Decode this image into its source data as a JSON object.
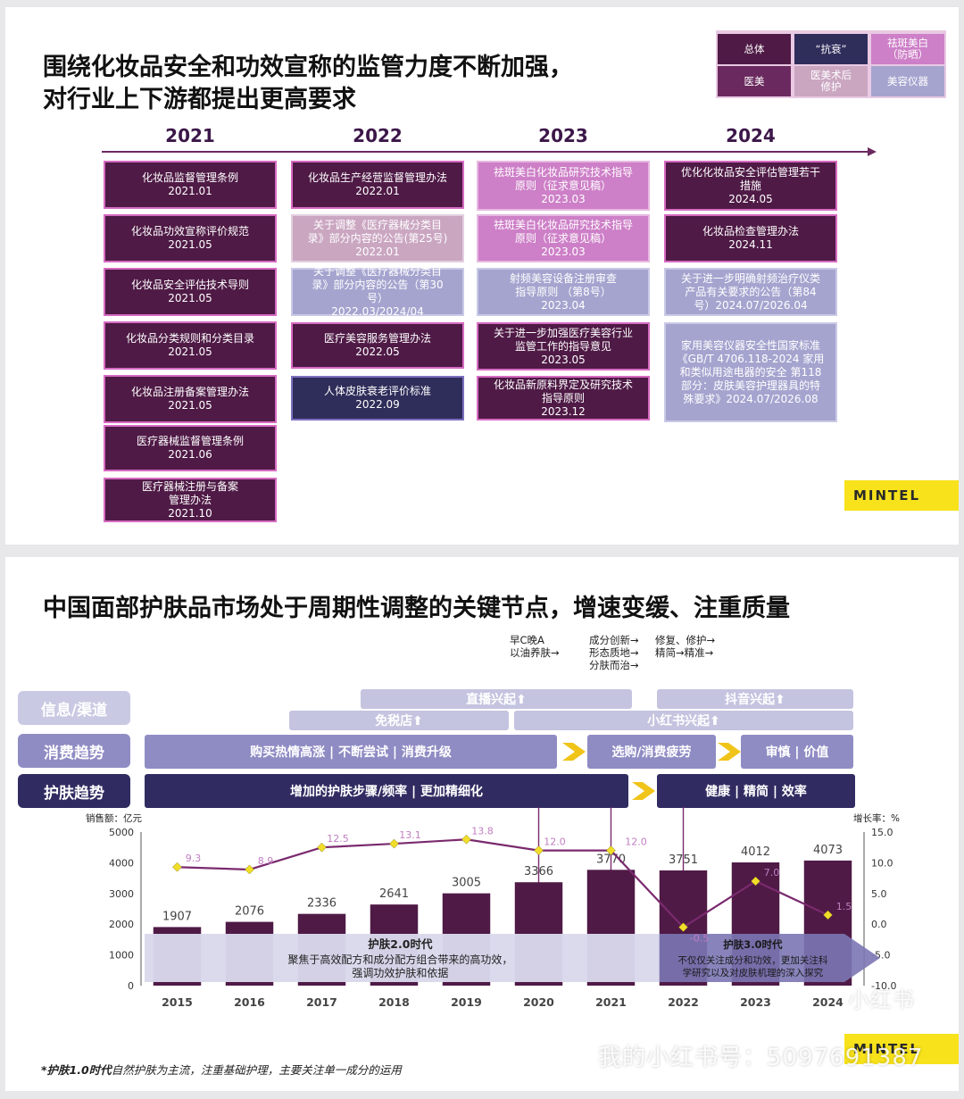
{
  "slide1": {
    "title_line1": "围绕化妆品安全和功效宣称的监管力度不断加强，",
    "title_line2": "对行业上下游都提出更高要求",
    "legend": [
      {
        "label": "总体",
        "bg": "#4f1a46",
        "fg": "#ffffff"
      },
      {
        "label": "“抗衰”",
        "bg": "#2f2d5a",
        "fg": "#ffffff"
      },
      {
        "label": "祛斑美白\n（防晒）",
        "bg": "#cd7fc7",
        "fg": "#ffffff"
      },
      {
        "label": "医美",
        "bg": "#6b2a5f",
        "fg": "#ffffff"
      },
      {
        "label": "医美术后\n修护",
        "bg": "#caa6c1",
        "fg": "#ffffff"
      },
      {
        "label": "美容仪器",
        "bg": "#a5a4cf",
        "fg": "#ffffff"
      }
    ],
    "years": [
      "2021",
      "2022",
      "2023",
      "2024"
    ],
    "columns": [
      [
        {
          "name": "化妆品监督管理条例",
          "date": "2021.01",
          "cat": "dark"
        },
        {
          "name": "化妆品功效宣称评价规范",
          "date": "2021.05",
          "cat": "dark"
        },
        {
          "name": "化妆品安全评估技术导则",
          "date": "2021.05",
          "cat": "dark"
        },
        {
          "name": "化妆品分类规则和分类目录",
          "date": "2021.05",
          "cat": "dark"
        },
        {
          "name": "化妆品注册备案管理办法",
          "date": "2021.05",
          "cat": "dark"
        },
        {
          "name": "医疗器械监督管理条例",
          "date": "2021.06",
          "cat": "dark"
        },
        {
          "name": "医疗器械注册与备案\n管理办法",
          "date": "2021.10",
          "cat": "dark"
        }
      ],
      [
        {
          "name": "化妆品生产经营监督管理办法",
          "date": "2022.01",
          "cat": "dark"
        },
        {
          "name": "关于调整《医疗器械分类目\n录》部分内容的公告(第25号)",
          "date": "2022.01",
          "cat": "rose"
        },
        {
          "name": "关于调整《医疗器械分类目\n录》部分内容的公告（第30\n号）",
          "date": "2022.03/2024/04",
          "cat": "lav"
        },
        {
          "name": "医疗美容服务管理办法",
          "date": "2022.05",
          "cat": "dark"
        },
        {
          "name": "人体皮肤衰老评价标准",
          "date": "2022.09",
          "cat": "navy"
        }
      ],
      [
        {
          "name": "祛斑美白化妆品研究技术指导\n原则（征求意见稿）",
          "date": "2023.03",
          "cat": "pink"
        },
        {
          "name": "祛斑美白化妆品研究技术指导\n原则（征求意见稿）",
          "date": "2023.03",
          "cat": "pink"
        },
        {
          "name": "射频美容设备注册审查\n指导原则 （第8号）",
          "date": "2023.04",
          "cat": "lav"
        },
        {
          "name": "关于进一步加强医疗美容行业\n监管工作的指导意见",
          "date": "2023.05",
          "cat": "dark"
        },
        {
          "name": "化妆品新原料界定及研究技术\n指导原则",
          "date": "2023.12",
          "cat": "dark"
        }
      ],
      [
        {
          "name": "优化化妆品安全评估管理若干\n措施",
          "date": "2024.05",
          "cat": "dark"
        },
        {
          "name": "化妆品检查管理办法",
          "date": "2024.11",
          "cat": "dark"
        },
        {
          "name": "关于进一步明确射频治疗仪类\n产品有关要求的公告（第84\n号）2024.07/2026.04",
          "date": "",
          "cat": "lav"
        },
        {
          "name": "家用美容仪器安全性国家标准\n《GB/T 4706.118-2024 家用\n和类似用途电器的安全 第118\n部分：皮肤美容护理器具的特\n殊要求》2024.07/2026.08",
          "date": "",
          "cat": "lav"
        }
      ]
    ],
    "logo": "MINTEL"
  },
  "slide2": {
    "title": "中国面部护肤品市场处于周期性调整的关键节点，增速变缓、注重质量",
    "row_labels": [
      "信息/渠道",
      "消费趋势",
      "护肤趋势"
    ],
    "channel_bars": [
      "直播兴起⬆",
      "抖音兴起⬆",
      "免税店⬆",
      "小红书兴起⬆"
    ],
    "consumer_bars": [
      "购买热情高涨 | 不断尝试 | 消费升级",
      "选购/消费疲劳",
      "审慎 | 价值"
    ],
    "skincare_bars": [
      "增加的护肤步骤/频率 | 更加精细化",
      "健康 | 精简 | 效率"
    ],
    "signposts": [
      "早C晚A\n以油养肤→",
      "成分创新→\n形态质地→\n分肤而治→",
      "修复、修护→\n精简→精准→"
    ],
    "era2_title": "护肤2.0时代",
    "era2_desc": "聚焦于高效配方和成分配方组合带来的高功效，\n强调功效护肤和依据",
    "era3_title": "护肤3.0时代",
    "era3_desc": "不仅仅关注成分和功效，更加关注科\n学研究以及对皮肤机理的深入探究",
    "footnote_bold": "*护肤1.0时代",
    "footnote_rest": "自然护肤为主流，注重基础护理，主要关注单一成分的运用",
    "logo": "MINTEL",
    "watermark": "我的小红书号：5097691387",
    "watermark_badge": "小红书"
  },
  "chart_data": {
    "type": "bar",
    "categories": [
      "2015",
      "2016",
      "2017",
      "2018",
      "2019",
      "2020",
      "2021",
      "2022",
      "2023",
      "2024"
    ],
    "series": [
      {
        "name": "销售额：亿元",
        "type": "bar",
        "axis": "left",
        "values": [
          1907,
          2076,
          2336,
          2641,
          3005,
          3366,
          3770,
          3751,
          4012,
          4073
        ]
      },
      {
        "name": "增长率：%",
        "type": "line",
        "axis": "right",
        "values": [
          9.3,
          8.9,
          12.5,
          13.1,
          13.8,
          12.0,
          12.0,
          -0.5,
          7.0,
          1.5
        ]
      }
    ],
    "ylabel_left": "销售额：亿元",
    "ylabel_right": "增长率：%",
    "ylim_left": [
      0,
      5000
    ],
    "yticks_left": [
      "0",
      "1000",
      "2000",
      "3000",
      "4000",
      "5000"
    ],
    "ylim_right": [
      -10,
      15
    ],
    "yticks_right": [
      "-10.0",
      "-5.0",
      "0.0",
      "5.0",
      "10.0",
      "15.0"
    ],
    "bar_color": "#4f1a46",
    "line_color": "#7a2a6e",
    "marker_color": "#f0de2a",
    "label_color": "#c07ec0"
  }
}
